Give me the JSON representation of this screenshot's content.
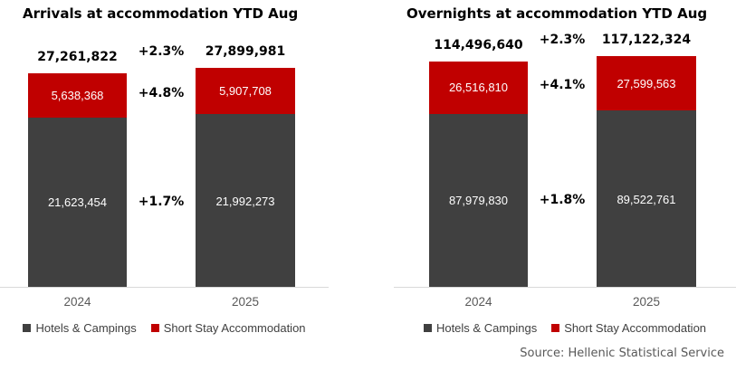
{
  "source_note": "Source: Hellenic Statistical Service",
  "colors": {
    "hotels": "#404040",
    "short_stay": "#c00000",
    "axis_line": "#d9d9d9",
    "category_text": "#595959",
    "source_text": "#595959",
    "title_text": "#000000",
    "background": "#ffffff"
  },
  "chart_data": [
    {
      "type": "bar",
      "stacked": true,
      "title": "Arrivals at accommodation YTD Aug",
      "categories": [
        "2024",
        "2025"
      ],
      "series": [
        {
          "name": "Hotels & Campings",
          "color": "#404040",
          "values": [
            21623454,
            21992273
          ],
          "labels": [
            "21,623,454",
            "21,992,273"
          ]
        },
        {
          "name": "Short Stay Accommodation",
          "color": "#c00000",
          "values": [
            5638368,
            5907708
          ],
          "labels": [
            "5,638,368",
            "5,907,708"
          ]
        }
      ],
      "totals": [
        27261822,
        27899981
      ],
      "total_labels": [
        "27,261,822",
        "27,899,981"
      ],
      "deltas": {
        "total": "+2.3%",
        "short_stay": "+4.8%",
        "hotels": "+1.7%"
      },
      "legend_position": "bottom",
      "grid": false,
      "y_axis_visible": false
    },
    {
      "type": "bar",
      "stacked": true,
      "title": "Overnights at accommodation YTD Aug",
      "categories": [
        "2024",
        "2025"
      ],
      "series": [
        {
          "name": "Hotels & Campings",
          "color": "#404040",
          "values": [
            87979830,
            89522761
          ],
          "labels": [
            "87,979,830",
            "89,522,761"
          ]
        },
        {
          "name": "Short Stay Accommodation",
          "color": "#c00000",
          "values": [
            26516810,
            27599563
          ],
          "labels": [
            "26,516,810",
            "27,599,563"
          ]
        }
      ],
      "totals": [
        114496640,
        117122324
      ],
      "total_labels": [
        "114,496,640",
        "117,122,324"
      ],
      "deltas": {
        "total": "+2.3%",
        "short_stay": "+4.1%",
        "hotels": "+1.8%"
      },
      "legend_position": "bottom",
      "grid": false,
      "y_axis_visible": false
    }
  ]
}
